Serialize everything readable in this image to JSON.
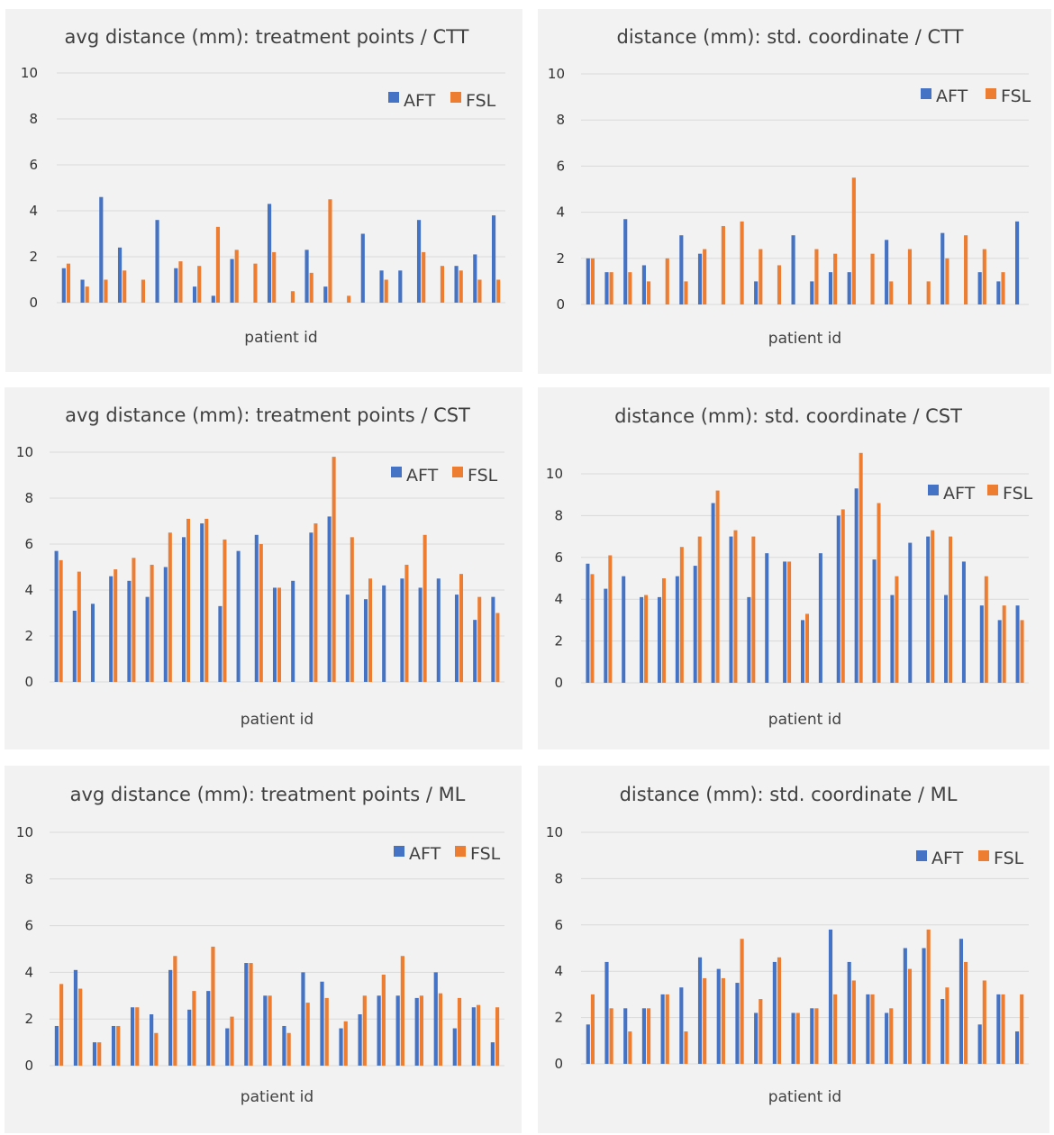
{
  "colors": {
    "AFT": "#4472c4",
    "FSL": "#ed7d31"
  },
  "chart_data": [
    {
      "type": "bar",
      "title": "avg distance (mm): treatment points / CTT",
      "xlabel": "patient id",
      "ylim": [
        0,
        10
      ],
      "yticks": [
        "0",
        "2",
        "4",
        "6",
        "8",
        "10"
      ],
      "legend": [
        "AFT",
        "FSL"
      ],
      "series": [
        {
          "name": "AFT",
          "values": [
            1.5,
            1.0,
            4.6,
            2.4,
            0,
            3.6,
            1.5,
            0.7,
            0.3,
            1.9,
            0,
            4.3,
            0,
            2.3,
            0.7,
            0,
            3.0,
            1.4,
            1.4,
            3.6,
            0,
            1.6,
            2.1,
            3.8
          ]
        },
        {
          "name": "FSL",
          "values": [
            1.7,
            0.7,
            1.0,
            1.4,
            1.0,
            0,
            1.8,
            1.6,
            3.3,
            2.3,
            1.7,
            2.2,
            0.5,
            1.3,
            4.5,
            0.3,
            0,
            1.0,
            0,
            2.2,
            1.6,
            1.4,
            1.0,
            1.0
          ]
        }
      ]
    },
    {
      "type": "bar",
      "title": "distance (mm): std. coordinate / CTT",
      "xlabel": "patient id",
      "ylim": [
        0,
        10
      ],
      "yticks": [
        "0",
        "2",
        "4",
        "6",
        "8",
        "10"
      ],
      "legend": [
        "AFT",
        "FSL"
      ],
      "series": [
        {
          "name": "AFT",
          "values": [
            2.0,
            1.4,
            3.7,
            1.7,
            0,
            3.0,
            2.2,
            0,
            0,
            1.0,
            0,
            3.0,
            1.0,
            1.4,
            1.4,
            0,
            2.8,
            0,
            0,
            3.1,
            0,
            1.4,
            1.0,
            3.6
          ]
        },
        {
          "name": "FSL",
          "values": [
            2.0,
            1.4,
            1.4,
            1.0,
            2.0,
            1.0,
            2.4,
            3.4,
            3.6,
            2.4,
            1.7,
            0,
            2.4,
            2.2,
            5.5,
            2.2,
            1.0,
            2.4,
            1.0,
            2.0,
            3.0,
            2.4,
            1.4,
            0
          ]
        }
      ]
    },
    {
      "type": "bar",
      "title": "avg distance (mm): treatment points / CST",
      "xlabel": "patient id",
      "ylim": [
        0,
        10
      ],
      "yticks": [
        "0",
        "2",
        "4",
        "6",
        "8",
        "10"
      ],
      "legend": [
        "AFT",
        "FSL"
      ],
      "series": [
        {
          "name": "AFT",
          "values": [
            5.7,
            3.1,
            3.4,
            4.6,
            4.4,
            3.7,
            5.0,
            6.3,
            6.9,
            3.3,
            5.7,
            6.4,
            4.1,
            4.4,
            6.5,
            7.2,
            3.8,
            3.6,
            4.2,
            4.5,
            4.1,
            4.5,
            3.8,
            2.7,
            3.7
          ]
        },
        {
          "name": "FSL",
          "values": [
            5.3,
            4.8,
            0,
            4.9,
            5.4,
            5.1,
            6.5,
            7.1,
            7.1,
            6.2,
            0,
            6.0,
            4.1,
            0,
            6.9,
            9.8,
            6.3,
            4.5,
            0,
            5.1,
            6.4,
            0,
            4.7,
            3.7,
            3.0
          ]
        }
      ]
    },
    {
      "type": "bar",
      "title": "distance (mm): std. coordinate / CST",
      "xlabel": "patient id",
      "ylim": [
        0,
        11
      ],
      "yticks": [
        "0",
        "2",
        "4",
        "6",
        "8",
        "10"
      ],
      "legend": [
        "AFT",
        "FSL"
      ],
      "series": [
        {
          "name": "AFT",
          "values": [
            5.7,
            4.5,
            5.1,
            4.1,
            4.1,
            5.1,
            5.6,
            8.6,
            7.0,
            4.1,
            6.2,
            5.8,
            3.0,
            6.2,
            8.0,
            9.3,
            5.9,
            4.2,
            6.7,
            7.0,
            4.2,
            5.8,
            3.7,
            3.0,
            3.7
          ]
        },
        {
          "name": "FSL",
          "values": [
            5.2,
            6.1,
            0,
            4.2,
            5.0,
            6.5,
            7.0,
            9.2,
            7.3,
            7.0,
            0,
            5.8,
            3.3,
            0,
            8.3,
            11.0,
            8.6,
            5.1,
            0,
            7.3,
            7.0,
            0,
            5.1,
            3.7,
            3.0
          ]
        }
      ]
    },
    {
      "type": "bar",
      "title": "avg distance (mm): treatment points / ML",
      "xlabel": "patient id",
      "ylim": [
        0,
        10
      ],
      "yticks": [
        "0",
        "2",
        "4",
        "6",
        "8",
        "10"
      ],
      "legend": [
        "AFT",
        "FSL"
      ],
      "series": [
        {
          "name": "AFT",
          "values": [
            1.7,
            4.1,
            1.0,
            1.7,
            2.5,
            2.2,
            4.1,
            2.4,
            3.2,
            1.6,
            4.4,
            3.0,
            1.7,
            4.0,
            3.6,
            1.6,
            2.2,
            3.0,
            3.0,
            2.9,
            4.0,
            1.6,
            2.5,
            1.0
          ]
        },
        {
          "name": "FSL",
          "values": [
            3.5,
            3.3,
            1.0,
            1.7,
            2.5,
            1.4,
            4.7,
            3.2,
            5.1,
            2.1,
            4.4,
            3.0,
            1.4,
            2.7,
            2.9,
            1.9,
            3.0,
            3.9,
            4.7,
            3.0,
            3.1,
            2.9,
            2.6,
            2.5
          ]
        }
      ]
    },
    {
      "type": "bar",
      "title": "distance (mm): std. coordinate / ML",
      "xlabel": "patient id",
      "ylim": [
        0,
        10
      ],
      "yticks": [
        "0",
        "2",
        "4",
        "6",
        "8",
        "10"
      ],
      "legend": [
        "AFT",
        "FSL"
      ],
      "series": [
        {
          "name": "AFT",
          "values": [
            1.7,
            4.4,
            2.4,
            2.4,
            3.0,
            3.3,
            4.6,
            4.1,
            3.5,
            2.2,
            4.4,
            2.2,
            2.4,
            5.8,
            4.4,
            3.0,
            2.2,
            5.0,
            5.0,
            2.8,
            5.4,
            1.7,
            3.0,
            1.4
          ]
        },
        {
          "name": "FSL",
          "values": [
            3.0,
            2.4,
            1.4,
            2.4,
            3.0,
            1.4,
            3.7,
            3.7,
            5.4,
            2.8,
            4.6,
            2.2,
            2.4,
            3.0,
            3.6,
            3.0,
            2.4,
            4.1,
            5.8,
            3.3,
            4.4,
            3.6,
            3.0,
            3.0
          ]
        }
      ]
    }
  ]
}
